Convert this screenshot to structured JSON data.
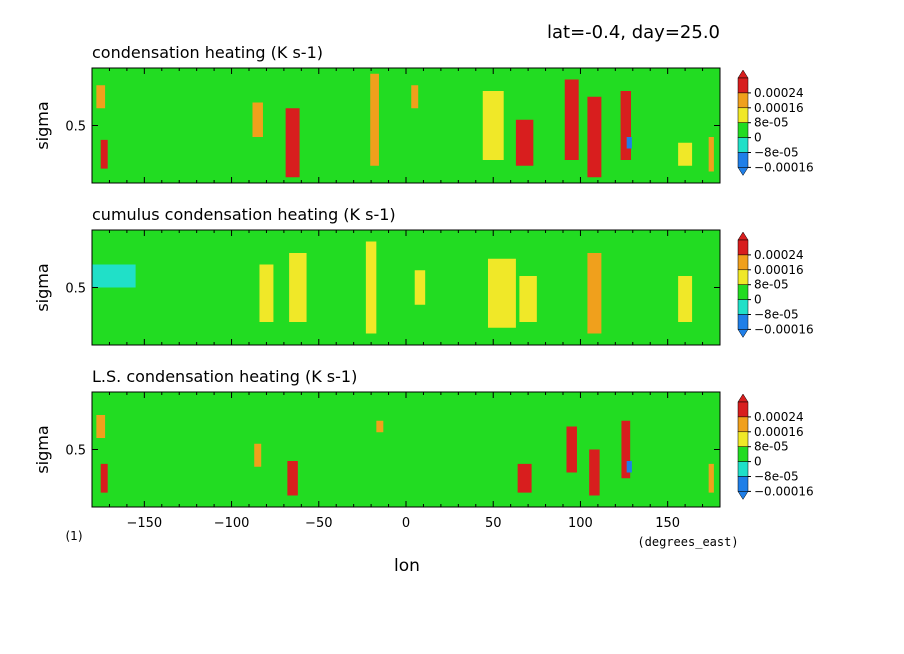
{
  "header": {
    "text": "lat=-0.4, day=25.0"
  },
  "footer": {
    "figure_number": "(1)",
    "xunit": "(degrees_east)",
    "xlabel": "lon"
  },
  "colors": {
    "levels": [
      "#1f7fe8",
      "#20e0c8",
      "#22dc22",
      "#f0e828",
      "#f0a01c",
      "#d81e1e"
    ],
    "background_field": "#22dc22"
  },
  "chart_data": [
    {
      "type": "heatmap",
      "title": "condensation heating (K s-1)",
      "xlabel": "lon",
      "ylabel": "sigma",
      "xlim": [
        -180,
        180
      ],
      "ylim": [
        1,
        0
      ],
      "xticks": [
        -150,
        -100,
        -50,
        0,
        50,
        100,
        150
      ],
      "yticks": [
        0.5
      ],
      "colorbar_labels": [
        "0.00024",
        "0.00016",
        "8e-05",
        "0",
        "-8e-05",
        "-0.00016"
      ],
      "colorbar_levels": [
        -0.00016,
        -8e-05,
        0,
        8e-05,
        0.00016,
        0.00024
      ],
      "features": [
        {
          "lon": -175,
          "sigma": 0.75,
          "w": 5,
          "h": 0.2,
          "value": 0.0002
        },
        {
          "lon": -173,
          "sigma": 0.25,
          "w": 4,
          "h": 0.25,
          "value": 0.0003
        },
        {
          "lon": -85,
          "sigma": 0.55,
          "w": 6,
          "h": 0.3,
          "value": 0.0002
        },
        {
          "lon": -65,
          "sigma": 0.35,
          "w": 8,
          "h": 0.6,
          "value": 0.0003
        },
        {
          "lon": -18,
          "sigma": 0.55,
          "w": 5,
          "h": 0.8,
          "value": 0.00022
        },
        {
          "lon": 5,
          "sigma": 0.75,
          "w": 4,
          "h": 0.2,
          "value": 0.0002
        },
        {
          "lon": 50,
          "sigma": 0.5,
          "w": 12,
          "h": 0.6,
          "value": 0.00014
        },
        {
          "lon": 68,
          "sigma": 0.35,
          "w": 10,
          "h": 0.4,
          "value": 0.0003
        },
        {
          "lon": 95,
          "sigma": 0.55,
          "w": 8,
          "h": 0.7,
          "value": 0.00025
        },
        {
          "lon": 108,
          "sigma": 0.4,
          "w": 8,
          "h": 0.7,
          "value": 0.0003
        },
        {
          "lon": 126,
          "sigma": 0.5,
          "w": 6,
          "h": 0.6,
          "value": 0.00025
        },
        {
          "lon": 128,
          "sigma": 0.35,
          "w": 3,
          "h": 0.1,
          "value": -0.0001
        },
        {
          "lon": 160,
          "sigma": 0.25,
          "w": 8,
          "h": 0.2,
          "value": 0.00014
        },
        {
          "lon": 175,
          "sigma": 0.25,
          "w": 3,
          "h": 0.3,
          "value": 0.0002
        }
      ]
    },
    {
      "type": "heatmap",
      "title": "cumulus condensation heating (K s-1)",
      "xlabel": "lon",
      "ylabel": "sigma",
      "xlim": [
        -180,
        180
      ],
      "ylim": [
        1,
        0
      ],
      "xticks": [
        -150,
        -100,
        -50,
        0,
        50,
        100,
        150
      ],
      "yticks": [
        0.5
      ],
      "colorbar_labels": [
        "0.00024",
        "0.00016",
        "8e-05",
        "0",
        "-8e-05",
        "-0.00016"
      ],
      "colorbar_levels": [
        -0.00016,
        -8e-05,
        0,
        8e-05,
        0.00016,
        0.00024
      ],
      "features": [
        {
          "lon": -170,
          "sigma": 0.6,
          "w": 30,
          "h": 0.2,
          "value": -2e-05
        },
        {
          "lon": -80,
          "sigma": 0.45,
          "w": 8,
          "h": 0.5,
          "value": 0.0001
        },
        {
          "lon": -62,
          "sigma": 0.5,
          "w": 10,
          "h": 0.6,
          "value": 0.00012
        },
        {
          "lon": -20,
          "sigma": 0.5,
          "w": 6,
          "h": 0.8,
          "value": 0.00012
        },
        {
          "lon": 8,
          "sigma": 0.5,
          "w": 6,
          "h": 0.3,
          "value": 0.0001
        },
        {
          "lon": 55,
          "sigma": 0.45,
          "w": 16,
          "h": 0.6,
          "value": 0.00012
        },
        {
          "lon": 70,
          "sigma": 0.4,
          "w": 10,
          "h": 0.4,
          "value": 0.0001
        },
        {
          "lon": 108,
          "sigma": 0.45,
          "w": 8,
          "h": 0.7,
          "value": 0.00016
        },
        {
          "lon": 160,
          "sigma": 0.4,
          "w": 8,
          "h": 0.4,
          "value": 0.0001
        }
      ]
    },
    {
      "type": "heatmap",
      "title": "L.S. condensation heating (K s-1)",
      "xlabel": "lon",
      "ylabel": "sigma",
      "xlim": [
        -180,
        180
      ],
      "ylim": [
        1,
        0
      ],
      "xticks": [
        -150,
        -100,
        -50,
        0,
        50,
        100,
        150
      ],
      "yticks": [
        0.5
      ],
      "colorbar_labels": [
        "0.00024",
        "0.00016",
        "8e-05",
        "0",
        "-8e-05",
        "-0.00016"
      ],
      "colorbar_levels": [
        -0.00016,
        -8e-05,
        0,
        8e-05,
        0.00016,
        0.00024
      ],
      "features": [
        {
          "lon": -175,
          "sigma": 0.7,
          "w": 5,
          "h": 0.2,
          "value": 0.0002
        },
        {
          "lon": -173,
          "sigma": 0.25,
          "w": 4,
          "h": 0.25,
          "value": 0.0003
        },
        {
          "lon": -85,
          "sigma": 0.45,
          "w": 4,
          "h": 0.2,
          "value": 0.0002
        },
        {
          "lon": -65,
          "sigma": 0.25,
          "w": 6,
          "h": 0.3,
          "value": 0.0003
        },
        {
          "lon": -15,
          "sigma": 0.7,
          "w": 4,
          "h": 0.1,
          "value": 0.0002
        },
        {
          "lon": 68,
          "sigma": 0.25,
          "w": 8,
          "h": 0.25,
          "value": 0.0003
        },
        {
          "lon": 95,
          "sigma": 0.5,
          "w": 6,
          "h": 0.4,
          "value": 0.00025
        },
        {
          "lon": 108,
          "sigma": 0.3,
          "w": 6,
          "h": 0.4,
          "value": 0.0003
        },
        {
          "lon": 126,
          "sigma": 0.5,
          "w": 5,
          "h": 0.5,
          "value": 0.00025
        },
        {
          "lon": 128,
          "sigma": 0.35,
          "w": 3,
          "h": 0.1,
          "value": -0.0001
        },
        {
          "lon": 175,
          "sigma": 0.25,
          "w": 3,
          "h": 0.25,
          "value": 0.0002
        }
      ]
    }
  ]
}
